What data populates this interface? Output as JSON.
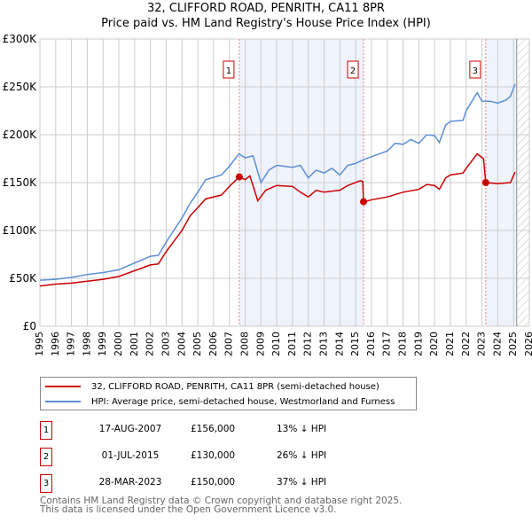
{
  "header": {
    "title": "32, CLIFFORD ROAD, PENRITH, CA11 8PR",
    "subtitle": "Price paid vs. HM Land Registry's House Price Index (HPI)"
  },
  "chart_data": {
    "type": "line",
    "title": "32, CLIFFORD ROAD, PENRITH, CA11 8PR",
    "subtitle": "Price paid vs. HM Land Registry's House Price Index (HPI)",
    "xlim": [
      1995,
      2026
    ],
    "ylim": [
      0,
      300000
    ],
    "yticks": [
      {
        "v": 0,
        "label": "£0"
      },
      {
        "v": 50000,
        "label": "£50K"
      },
      {
        "v": 100000,
        "label": "£100K"
      },
      {
        "v": 150000,
        "label": "£150K"
      },
      {
        "v": 200000,
        "label": "£200K"
      },
      {
        "v": 250000,
        "label": "£250K"
      },
      {
        "v": 300000,
        "label": "£300K"
      }
    ],
    "xticks": [
      "1995",
      "1996",
      "1997",
      "1998",
      "1999",
      "2000",
      "2001",
      "2002",
      "2003",
      "2004",
      "2005",
      "2006",
      "2007",
      "2008",
      "2009",
      "2010",
      "2011",
      "2012",
      "2013",
      "2014",
      "2015",
      "2016",
      "2017",
      "2018",
      "2019",
      "2020",
      "2021",
      "2022",
      "2023",
      "2024",
      "2025",
      "2026"
    ],
    "grid": true,
    "shaded_ranges": [
      [
        2007.63,
        2015.5
      ],
      [
        2023.24,
        2025.2
      ]
    ],
    "forecast_hatch_from": 2025.2,
    "colors": {
      "property": "#cc0000",
      "hpi": "#5b8fd4",
      "shade": "#eef3fc"
    },
    "series": [
      {
        "name": "32, CLIFFORD ROAD, PENRITH, CA11 8PR (semi-detached house)",
        "color": "#cc0000",
        "x": [
          1995,
          1996,
          1997,
          1998,
          1999,
          2000,
          2001,
          2002,
          2002.5,
          2003,
          2004,
          2004.5,
          2005,
          2005.5,
          2006.5,
          2007,
          2007.63,
          2008,
          2008.3,
          2008.8,
          2009.3,
          2010,
          2011,
          2011.5,
          2012,
          2012.5,
          2013,
          2014,
          2014.5,
          2015.3,
          2015.45,
          2015.5,
          2016,
          2017,
          2018,
          2019,
          2019.5,
          2020,
          2020.3,
          2020.7,
          2021,
          2021.8,
          2022,
          2022.7,
          2023.1,
          2023.24,
          2024,
          2024.8,
          2025.1
        ],
        "y": [
          42000,
          44000,
          45000,
          47000,
          49000,
          52000,
          58000,
          64000,
          65000,
          78000,
          100000,
          115000,
          124000,
          133000,
          137000,
          146000,
          156000,
          153000,
          157000,
          131000,
          142000,
          147000,
          146000,
          140000,
          135000,
          142000,
          140000,
          142000,
          147000,
          152000,
          151000,
          130000,
          132000,
          135000,
          140000,
          143000,
          148000,
          147000,
          143000,
          155000,
          158000,
          160000,
          165000,
          180000,
          175000,
          150000,
          149000,
          150000,
          161000
        ]
      },
      {
        "name": "HPI: Average price, semi-detached house, Westmorland and Furness",
        "color": "#5b8fd4",
        "x": [
          1995,
          1996,
          1997,
          1998,
          1999,
          2000,
          2001,
          2002,
          2002.5,
          2003,
          2004,
          2004.5,
          2005,
          2005.5,
          2006.5,
          2007,
          2007.6,
          2008,
          2008.5,
          2009,
          2009.5,
          2010,
          2011,
          2011.5,
          2012,
          2012.5,
          2013,
          2013.5,
          2014,
          2014.5,
          2015,
          2015.5,
          2016,
          2017,
          2017.5,
          2018,
          2018.5,
          2019,
          2019.5,
          2020,
          2020.3,
          2020.7,
          2021,
          2021.8,
          2022,
          2022.7,
          2023,
          2023.5,
          2024,
          2024.5,
          2024.8,
          2025.1
        ],
        "y": [
          48000,
          49000,
          51000,
          54000,
          56000,
          59000,
          66000,
          73000,
          74000,
          88000,
          113000,
          128000,
          140000,
          153000,
          158000,
          167000,
          180000,
          176000,
          178000,
          150000,
          163000,
          168000,
          166000,
          168000,
          155000,
          163000,
          160000,
          165000,
          158000,
          168000,
          170000,
          174000,
          177000,
          183000,
          191000,
          190000,
          195000,
          191000,
          200000,
          199000,
          192000,
          210000,
          214000,
          215000,
          225000,
          244000,
          235000,
          235000,
          233000,
          236000,
          240000,
          253000
        ]
      }
    ],
    "transactions": [
      {
        "id": "1",
        "x": 2007.63,
        "price": 156000,
        "date": "17-AUG-2007",
        "price_label": "£156,000",
        "hpi_diff": "13% ↓ HPI"
      },
      {
        "id": "2",
        "x": 2015.5,
        "price": 130000,
        "date": "01-JUL-2015",
        "price_label": "£130,000",
        "hpi_diff": "26% ↓ HPI"
      },
      {
        "id": "3",
        "x": 2023.24,
        "price": 150000,
        "date": "28-MAR-2023",
        "price_label": "£150,000",
        "hpi_diff": "37% ↓ HPI"
      }
    ]
  },
  "footer": {
    "line1": "Contains HM Land Registry data © Crown copyright and database right 2025.",
    "line2": "This data is licensed under the Open Government Licence v3.0."
  }
}
